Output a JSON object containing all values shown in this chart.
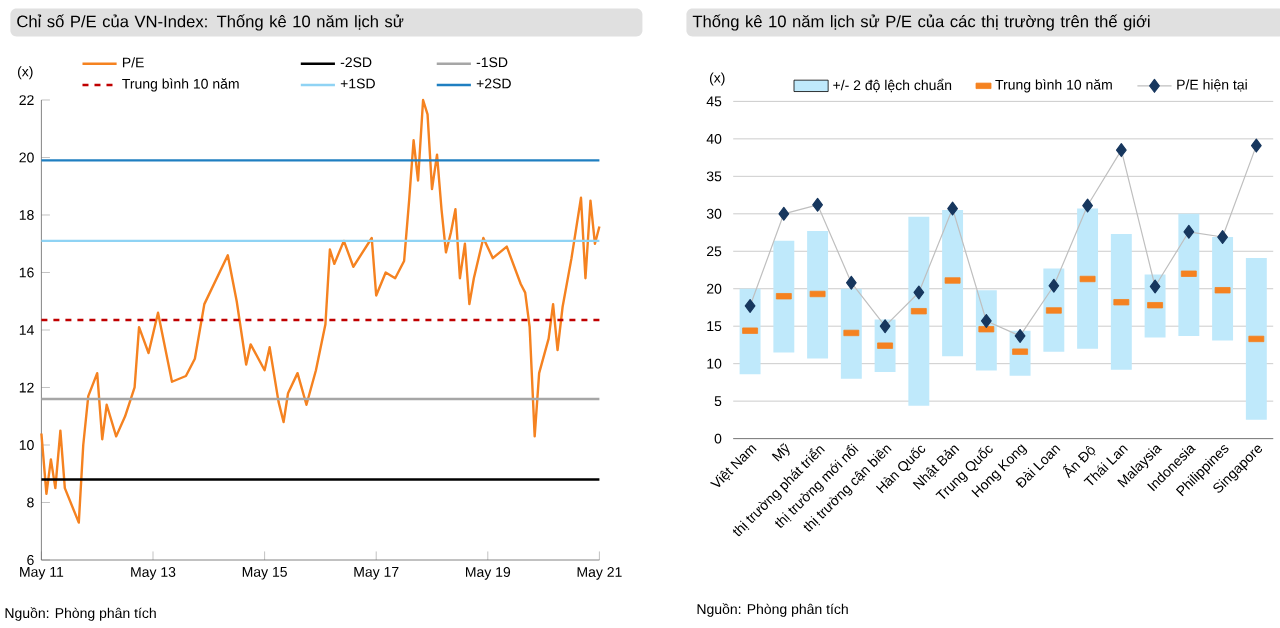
{
  "chart_data": [
    {
      "type": "line",
      "title": "Chỉ số P/E của VN-Index: Thống kê 10 năm lịch sử",
      "ylabel": "(x)",
      "x": [
        "2011-05",
        "2011-06",
        "2011-07",
        "2011-08",
        "2011-09",
        "2011-10",
        "2012-01",
        "2012-02",
        "2012-03",
        "2012-05",
        "2012-06",
        "2012-07",
        "2012-09",
        "2012-11",
        "2013-01",
        "2013-02",
        "2013-04",
        "2013-06",
        "2013-09",
        "2013-12",
        "2014-02",
        "2014-04",
        "2014-09",
        "2014-11",
        "2015-01",
        "2015-02",
        "2015-05",
        "2015-06",
        "2015-08",
        "2015-09",
        "2015-10",
        "2015-12",
        "2016-02",
        "2016-04",
        "2016-06",
        "2016-07",
        "2016-08",
        "2016-10",
        "2016-12",
        "2017-04",
        "2017-05",
        "2017-07",
        "2017-09",
        "2017-11",
        "2017-12",
        "2018-01",
        "2018-02",
        "2018-03",
        "2018-04",
        "2018-05",
        "2018-06",
        "2018-07",
        "2018-08",
        "2018-09",
        "2018-10",
        "2018-11",
        "2018-12",
        "2019-01",
        "2019-02",
        "2019-04",
        "2019-06",
        "2019-09",
        "2019-12",
        "2020-01",
        "2020-02",
        "2020-03",
        "2020-04",
        "2020-06",
        "2020-07",
        "2020-08",
        "2020-09",
        "2020-11",
        "2021-01",
        "2021-02",
        "2021-03",
        "2021-04",
        "2021-05"
      ],
      "series": [
        {
          "name": "P/E",
          "color": "#f58220",
          "values": [
            10.4,
            8.3,
            9.5,
            8.5,
            10.5,
            8.5,
            7.3,
            10.0,
            11.7,
            12.5,
            10.2,
            11.4,
            10.3,
            11.0,
            12.0,
            14.1,
            13.2,
            14.6,
            12.2,
            12.4,
            13.0,
            14.9,
            16.6,
            15.0,
            12.8,
            13.5,
            12.6,
            13.4,
            11.5,
            10.8,
            11.8,
            12.5,
            11.4,
            12.6,
            14.2,
            16.8,
            16.3,
            17.1,
            16.2,
            17.2,
            15.2,
            16.0,
            15.8,
            16.4,
            18.5,
            20.6,
            19.2,
            22.0,
            21.5,
            18.9,
            20.1,
            18.2,
            16.7,
            17.4,
            18.2,
            15.8,
            17.0,
            14.9,
            15.8,
            17.2,
            16.5,
            16.9,
            15.6,
            15.3,
            14.1,
            10.3,
            12.5,
            13.7,
            14.9,
            13.3,
            14.8,
            16.5,
            18.6,
            15.8,
            18.5,
            17.0,
            17.6
          ]
        }
      ],
      "xlim": [
        "2011-05",
        "2021-05"
      ],
      "xticks": [
        {
          "value": "2011-05",
          "label": "May 11"
        },
        {
          "value": "2013-05",
          "label": "May 13"
        },
        {
          "value": "2015-05",
          "label": "May 15"
        },
        {
          "value": "2017-05",
          "label": "May 17"
        },
        {
          "value": "2019-05",
          "label": "May 19"
        },
        {
          "value": "2021-05",
          "label": "May 21"
        }
      ],
      "ylim": [
        6,
        22
      ],
      "yticks": [
        6,
        8,
        10,
        12,
        14,
        16,
        18,
        20,
        22
      ],
      "ref_lines": [
        {
          "axis": "y",
          "value": 8.8,
          "label": "-2SD",
          "color": "#000000"
        },
        {
          "axis": "y",
          "value": 11.6,
          "label": "-1SD",
          "color": "#a6a6a6"
        },
        {
          "axis": "y",
          "value": 14.35,
          "label": "Trung bình 10 năm",
          "color": "#c00000",
          "line_style": "dashed"
        },
        {
          "axis": "y",
          "value": 17.1,
          "label": "+1SD",
          "color": "#8fd3f4"
        },
        {
          "axis": "y",
          "value": 19.9,
          "label": "+2SD",
          "color": "#1f7fc1"
        }
      ],
      "legend": "top",
      "annotations": [
        "Nguồn: Phòng phân tích"
      ]
    },
    {
      "type": "bar",
      "title": "Thống kê 10 năm lịch sử P/E của các thị trường trên thế giới",
      "ylabel": "(x)",
      "categories": [
        "Việt Nam",
        "Mỹ",
        "thị trường phát triển",
        "thị trường mới nổi",
        "thị trường cận biên",
        "Hàn Quốc",
        "Nhật Bản",
        "Trung Quốc",
        "Hong Kong",
        "Đài Loan",
        "Ấn Độ",
        "Thái Lan",
        "Malaysia",
        "Indonesia",
        "Philippines",
        "Singapore"
      ],
      "series": [
        {
          "name": "+/- 2 độ lệch chuẩn",
          "color": "#bfe9fb",
          "base": [
            8.6,
            11.5,
            10.7,
            8.0,
            8.9,
            4.4,
            11.0,
            9.1,
            8.4,
            11.6,
            12.0,
            9.2,
            13.5,
            13.7,
            13.1,
            2.5
          ],
          "values": [
            11.4,
            14.9,
            17.0,
            12.0,
            7.0,
            25.2,
            19.5,
            10.7,
            6.0,
            11.1,
            18.7,
            18.1,
            8.4,
            16.3,
            13.8,
            21.6
          ]
        },
        {
          "name": "Trung bình 10 năm",
          "type": "scatter",
          "color": "#f58220",
          "values": [
            14.4,
            19.0,
            19.3,
            14.1,
            12.4,
            17.0,
            21.1,
            14.6,
            11.6,
            17.1,
            21.3,
            18.2,
            17.8,
            22.0,
            19.8,
            13.3
          ]
        },
        {
          "name": "P/E hiện tại",
          "type": "line",
          "color": "#17375e",
          "marker": "diamond",
          "values": [
            17.7,
            30.0,
            31.2,
            20.8,
            15.0,
            19.5,
            30.7,
            15.7,
            13.7,
            20.4,
            31.1,
            38.5,
            20.3,
            27.6,
            26.9,
            39.1
          ]
        }
      ],
      "ylim": [
        0,
        45
      ],
      "yticks": [
        0,
        5,
        10,
        15,
        20,
        25,
        30,
        35,
        40,
        45
      ],
      "grid": "y",
      "legend": "top",
      "annotations": [
        "Nguồn: Phòng phân tích"
      ]
    }
  ]
}
